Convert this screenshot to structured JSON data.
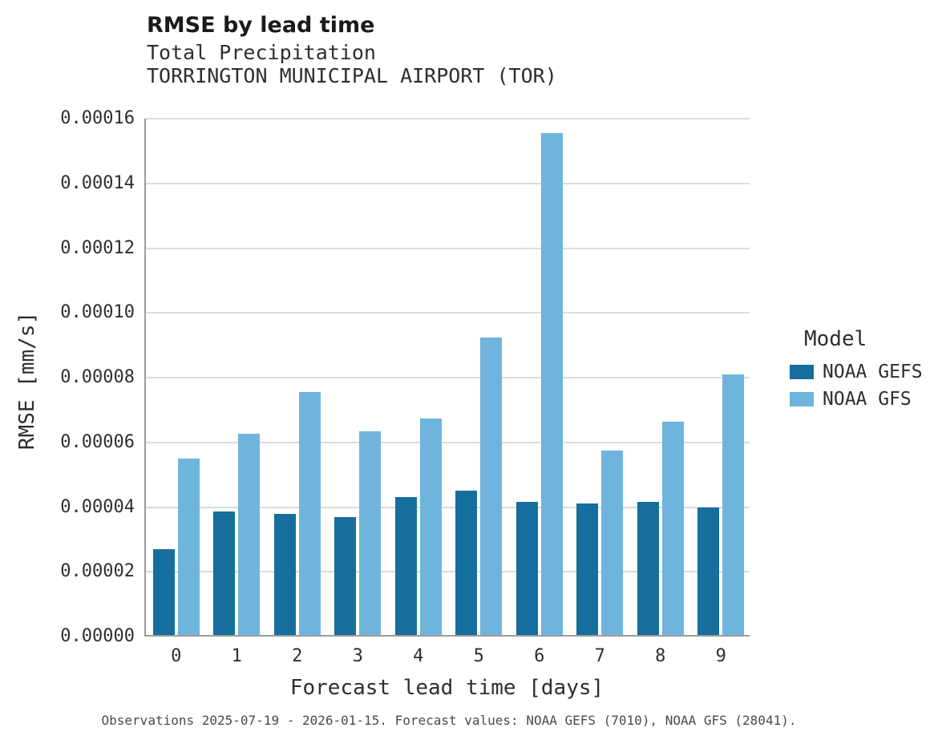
{
  "chart_data": {
    "type": "bar",
    "title": "RMSE by lead time",
    "subtitle": "Total Precipitation",
    "subtitle2": "TORRINGTON MUNICIPAL AIRPORT (TOR)",
    "xlabel": "Forecast lead time [days]",
    "ylabel": "RMSE [mm/s]",
    "ylim": [
      0,
      0.00016
    ],
    "grid": "horizontal",
    "categories": [
      "0",
      "1",
      "2",
      "3",
      "4",
      "5",
      "6",
      "7",
      "8",
      "9"
    ],
    "yticks": [
      {
        "value": 0.0,
        "label": "0.00000"
      },
      {
        "value": 2e-05,
        "label": "0.00002"
      },
      {
        "value": 4e-05,
        "label": "0.00004"
      },
      {
        "value": 6e-05,
        "label": "0.00006"
      },
      {
        "value": 8e-05,
        "label": "0.00008"
      },
      {
        "value": 0.0001,
        "label": "0.00010"
      },
      {
        "value": 0.00012,
        "label": "0.00012"
      },
      {
        "value": 0.00014,
        "label": "0.00014"
      },
      {
        "value": 0.00016,
        "label": "0.00016"
      }
    ],
    "series": [
      {
        "name": "NOAA GEFS",
        "color": "#156e9e",
        "values": [
          2.65e-05,
          3.82e-05,
          3.75e-05,
          3.63e-05,
          4.25e-05,
          4.47e-05,
          4.12e-05,
          4.05e-05,
          4.11e-05,
          3.94e-05
        ]
      },
      {
        "name": "NOAA GFS",
        "color": "#6fb4dc",
        "values": [
          5.45e-05,
          6.22e-05,
          7.5e-05,
          6.29e-05,
          6.7e-05,
          9.2e-05,
          0.000155,
          5.7e-05,
          6.58e-05,
          8.05e-05
        ]
      }
    ],
    "legend": {
      "title": "Model",
      "position": "right"
    },
    "caption": "Observations 2025-07-19 - 2026-01-15. Forecast values: NOAA GEFS (7010), NOAA GFS (28041)."
  }
}
